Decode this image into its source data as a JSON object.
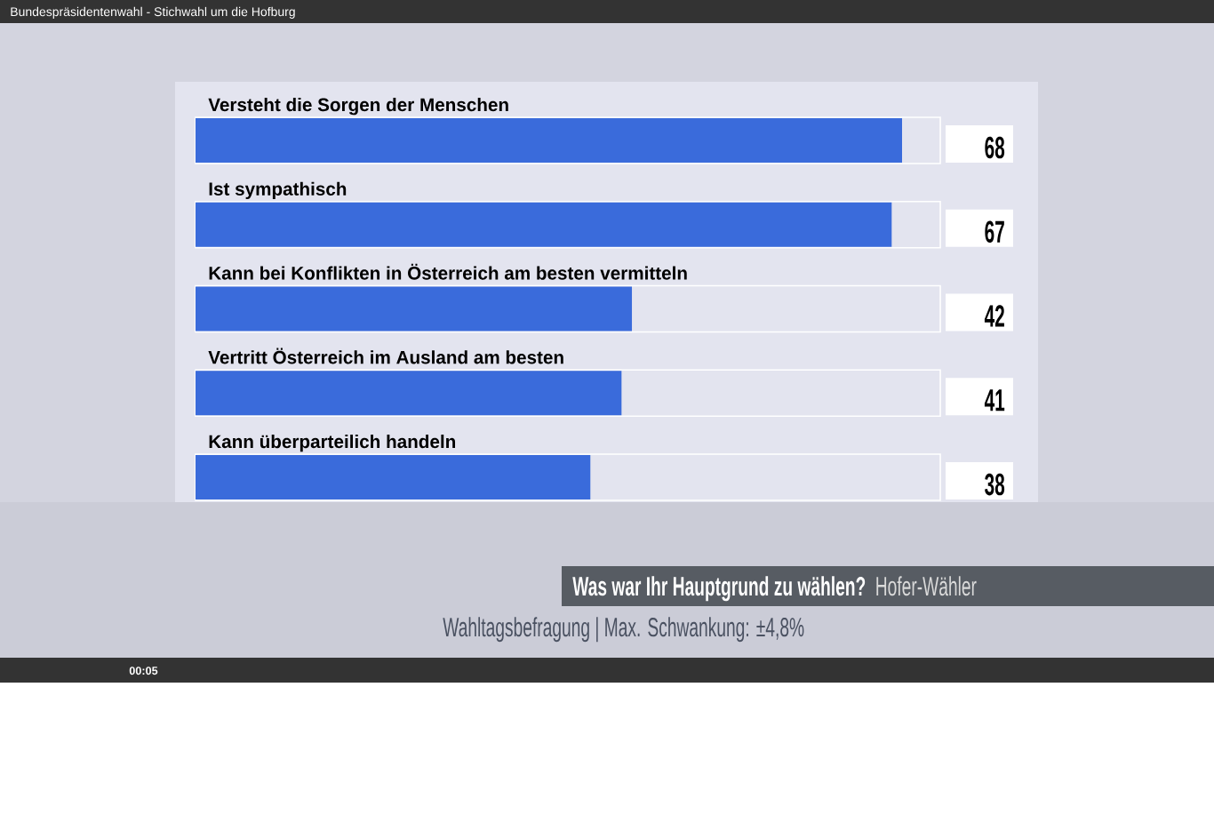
{
  "chart_data": {
    "type": "bar",
    "orientation": "horizontal",
    "title": "Was war Ihr Hauptgrund zu wählen?",
    "subtitle": "Hofer-Wähler",
    "categories": [
      "Versteht die Sorgen der Menschen",
      "Ist sympathisch",
      "Kann bei Konflikten in Österreich am besten vermitteln",
      "Vertritt Österreich im Ausland am besten",
      "Kann überparteilich handeln"
    ],
    "values": [
      68,
      67,
      42,
      41,
      38
    ],
    "color": "#3a6bdb",
    "data_labels": true,
    "tick_labels": "y",
    "annotations": [
      "Bundespräsidentenwahl - Stichwahl um die Hofburg",
      "Wahltagsbefragung | Max. Schwankung: ±4,8%",
      "00:05"
    ]
  }
}
